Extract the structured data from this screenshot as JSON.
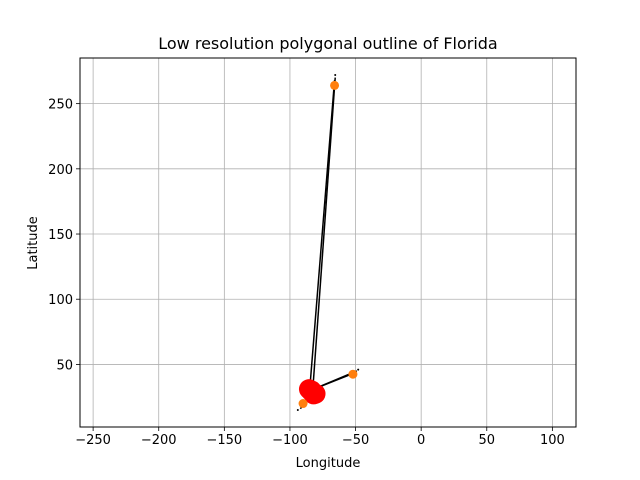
{
  "chart_data": {
    "type": "line",
    "title": "Low resolution polygonal outline of Florida",
    "xlabel": "Longitude",
    "ylabel": "Latitude",
    "xlim": [
      -260,
      118
    ],
    "ylim": [
      2,
      285
    ],
    "xticks": [
      -250,
      -200,
      -150,
      -100,
      -50,
      0,
      50,
      100
    ],
    "yticks": [
      50,
      100,
      150,
      200,
      250
    ],
    "grid": true,
    "colors": {
      "outline": "#000000",
      "large_marker": "#ff0000",
      "small_marker": "#ff7f0e",
      "grid": "#b0b0b0"
    },
    "outline": {
      "x": [
        -87.5,
        -85.0,
        -82.0,
        -80.0,
        -81.0,
        -82.5,
        -85.0,
        -87.5
      ],
      "y": [
        30.5,
        29.5,
        28.0,
        26.0,
        25.0,
        27.0,
        29.0,
        30.5
      ]
    },
    "segments": [
      {
        "x": [
          -82.5,
          -65.5
        ],
        "y": [
          32.0,
          270.0
        ]
      },
      {
        "x": [
          -85.0,
          -66.0
        ],
        "y": [
          30.0,
          268.0
        ]
      },
      {
        "x": [
          -84.5,
          -52.0
        ],
        "y": [
          30.0,
          43.0
        ]
      },
      {
        "x": [
          -84.5,
          -49.0
        ],
        "y": [
          30.0,
          45.0
        ]
      },
      {
        "x": [
          -86.0,
          -92.0
        ],
        "y": [
          25.0,
          16.0
        ]
      }
    ],
    "large_markers": {
      "x": [
        -84.0,
        -83.5,
        -82.0,
        -80.5,
        -85.5
      ],
      "y": [
        29.5,
        30.0,
        27.0,
        27.5,
        31.0
      ]
    },
    "small_markers": {
      "x": [
        -66.0,
        -52.0,
        -90.0
      ],
      "y": [
        264.0,
        42.5,
        20.0
      ]
    },
    "dot_markers": {
      "x": [
        -65.5,
        -48.0,
        -94.0
      ],
      "y": [
        272.0,
        46.0,
        15.0
      ]
    }
  }
}
